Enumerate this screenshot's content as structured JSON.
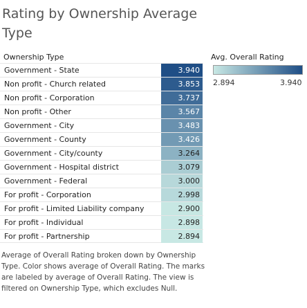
{
  "chart_data": {
    "type": "table",
    "title": "Rating by Ownership Average Type",
    "row_header": "Ownership Type",
    "legend": {
      "title": "Avg. Overall Rating",
      "min_label": "2.894",
      "max_label": "3.940",
      "min": 2.894,
      "max": 3.94
    },
    "colors": {
      "low": "#c8e8e4",
      "high": "#1f4e86"
    },
    "rows": [
      {
        "label": "Government - State",
        "value": 3.94,
        "text": "3.940"
      },
      {
        "label": "Non profit - Church related",
        "value": 3.853,
        "text": "3.853"
      },
      {
        "label": "Non profit - Corporation",
        "value": 3.737,
        "text": "3.737"
      },
      {
        "label": "Non profit - Other",
        "value": 3.567,
        "text": "3.567"
      },
      {
        "label": "Government - City",
        "value": 3.483,
        "text": "3.483"
      },
      {
        "label": "Government - County",
        "value": 3.426,
        "text": "3.426"
      },
      {
        "label": "Government - City/county",
        "value": 3.264,
        "text": "3.264"
      },
      {
        "label": "Government - Hospital district",
        "value": 3.079,
        "text": "3.079"
      },
      {
        "label": "Government - Federal",
        "value": 3.0,
        "text": "3.000"
      },
      {
        "label": "For profit - Corporation",
        "value": 2.998,
        "text": "2.998"
      },
      {
        "label": "For profit - Limited Liability company",
        "value": 2.9,
        "text": "2.900"
      },
      {
        "label": "For profit - Individual",
        "value": 2.898,
        "text": "2.898"
      },
      {
        "label": "For profit - Partnership",
        "value": 2.894,
        "text": "2.894"
      }
    ],
    "caption": "Average of Overall Rating broken down by Ownership Type.  Color shows average of Overall Rating.  The marks are labeled by average of Overall Rating. The view is filtered on Ownership Type, which excludes Null."
  }
}
